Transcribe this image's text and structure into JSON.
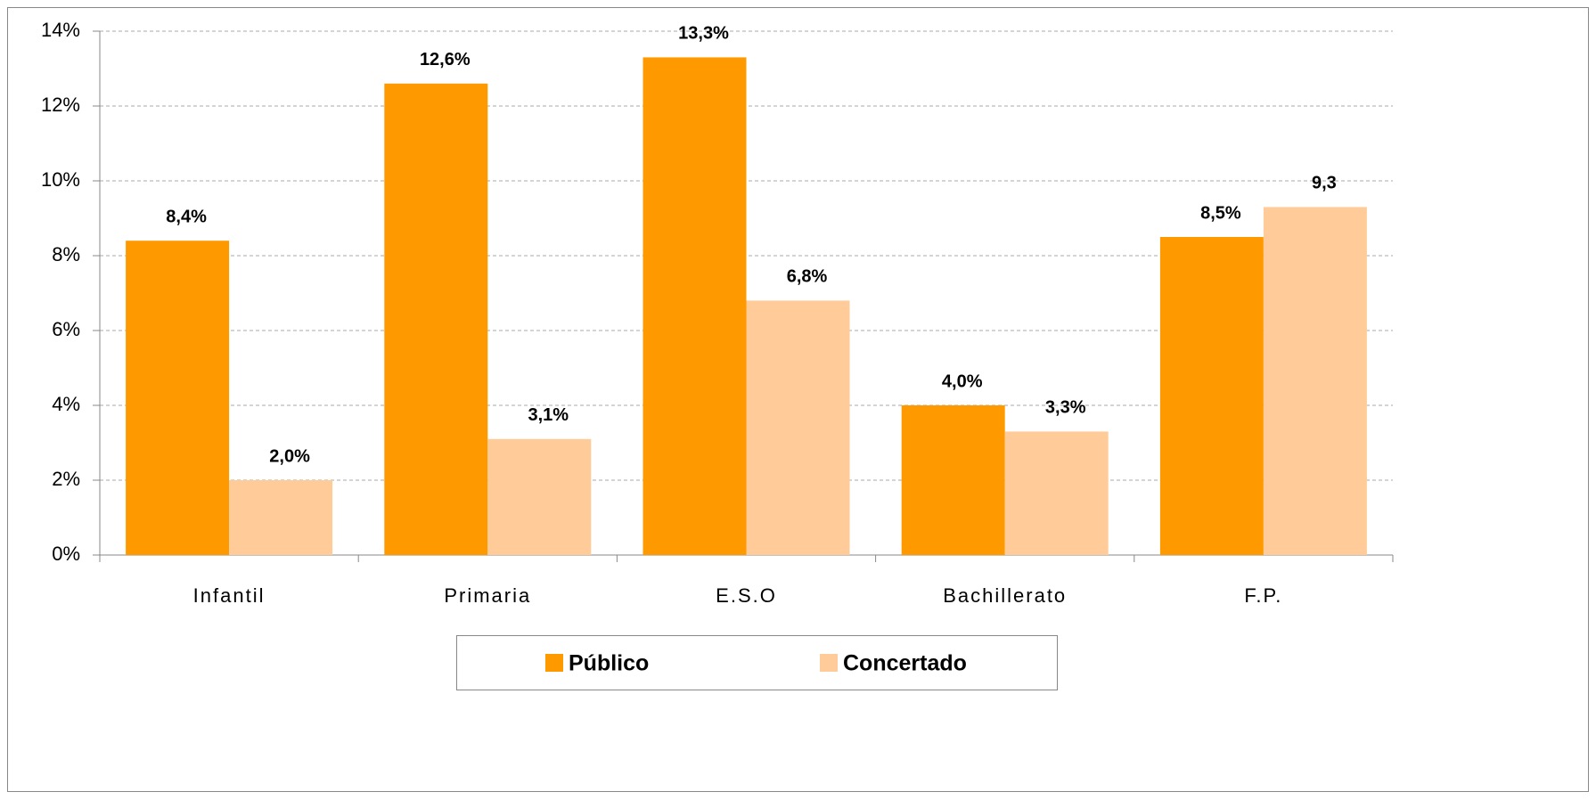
{
  "chart_data": {
    "type": "bar",
    "categories": [
      "Infantil",
      "Primaria",
      "E.S.O",
      "Bachillerato",
      "F.P."
    ],
    "series": [
      {
        "name": "Público",
        "color": "#ff9900",
        "values": [
          8.4,
          12.6,
          13.3,
          4.0,
          8.5
        ],
        "value_labels": [
          "8,4%",
          "12,6%",
          "13,3%",
          "4,0%",
          "8,5%"
        ]
      },
      {
        "name": "Concertado",
        "color": "#ffcc99",
        "values": [
          2.0,
          3.1,
          6.8,
          3.3,
          9.3
        ],
        "value_labels": [
          "2,0%",
          "3,1%",
          "6,8%",
          "3,3%",
          "9,3"
        ]
      }
    ],
    "ylim": [
      0,
      14
    ],
    "yticks": [
      {
        "value": 0,
        "label": "0%"
      },
      {
        "value": 2,
        "label": "2%"
      },
      {
        "value": 4,
        "label": "4%"
      },
      {
        "value": 6,
        "label": "6%"
      },
      {
        "value": 8,
        "label": "8%"
      },
      {
        "value": 10,
        "label": "10%"
      },
      {
        "value": 12,
        "label": "12%"
      },
      {
        "value": 14,
        "label": "14%"
      }
    ],
    "grid": true,
    "legend": "bottom"
  }
}
